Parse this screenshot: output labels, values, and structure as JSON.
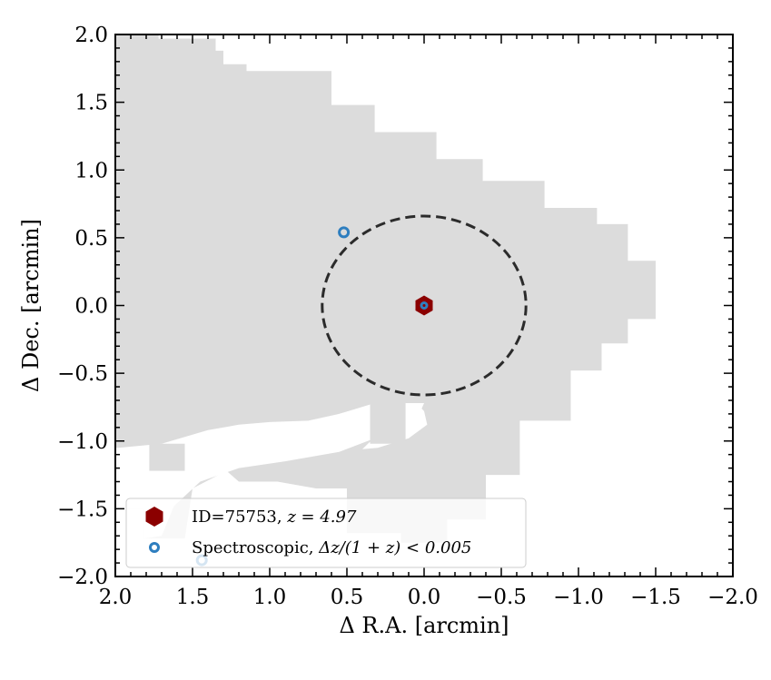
{
  "chart_data": {
    "type": "scatter",
    "title": "",
    "xlabel": "Δ R.A. [arcmin]",
    "ylabel": "Δ Dec. [arcmin]",
    "xlim": [
      2.0,
      -2.0
    ],
    "ylim": [
      -2.0,
      2.0
    ],
    "xticks": [
      2.0,
      1.5,
      1.0,
      0.5,
      0.0,
      -0.5,
      -1.0,
      -1.5,
      -2.0
    ],
    "xtick_labels": [
      "2.0",
      "1.5",
      "1.0",
      "0.5",
      "0.0",
      "−0.5",
      "−1.0",
      "−1.5",
      "−2.0"
    ],
    "yticks": [
      2.0,
      1.5,
      1.0,
      0.5,
      0.0,
      -0.5,
      -1.0,
      -1.5,
      -2.0
    ],
    "ytick_labels": [
      "2.0",
      "1.5",
      "1.0",
      "0.5",
      "0.0",
      "−0.5",
      "−1.0",
      "−1.5",
      "−2.0"
    ],
    "grid": false,
    "legend_position": "lower-left",
    "coverage_color": "#dcdcdc",
    "coverage_region": [
      [
        2.0,
        2.0
      ],
      [
        1.72,
        2.0
      ],
      [
        1.72,
        1.97
      ],
      [
        1.35,
        1.97
      ],
      [
        1.35,
        1.88
      ],
      [
        1.3,
        1.88
      ],
      [
        1.3,
        1.78
      ],
      [
        1.15,
        1.78
      ],
      [
        1.15,
        1.73
      ],
      [
        0.6,
        1.73
      ],
      [
        0.6,
        1.48
      ],
      [
        0.32,
        1.48
      ],
      [
        0.32,
        1.28
      ],
      [
        -0.08,
        1.28
      ],
      [
        -0.08,
        1.08
      ],
      [
        -0.38,
        1.08
      ],
      [
        -0.38,
        0.92
      ],
      [
        -0.78,
        0.92
      ],
      [
        -0.78,
        0.72
      ],
      [
        -1.12,
        0.72
      ],
      [
        -1.12,
        0.6
      ],
      [
        -1.32,
        0.6
      ],
      [
        -1.32,
        0.33
      ],
      [
        -1.5,
        0.33
      ],
      [
        -1.5,
        -0.1
      ],
      [
        -1.32,
        -0.1
      ],
      [
        -1.32,
        -0.28
      ],
      [
        -1.15,
        -0.28
      ],
      [
        -1.15,
        -0.48
      ],
      [
        -0.95,
        -0.48
      ],
      [
        -0.95,
        -0.85
      ],
      [
        -0.62,
        -0.85
      ],
      [
        -0.62,
        -1.25
      ],
      [
        -0.4,
        -1.25
      ],
      [
        -0.4,
        -1.58
      ],
      [
        -0.15,
        -1.58
      ],
      [
        -0.15,
        -1.75
      ],
      [
        0.15,
        -1.75
      ],
      [
        0.15,
        -1.68
      ],
      [
        0.5,
        -1.68
      ],
      [
        0.5,
        -1.35
      ],
      [
        0.7,
        -1.35
      ],
      [
        0.95,
        -1.3
      ],
      [
        1.2,
        -1.3
      ],
      [
        1.28,
        -1.22
      ],
      [
        1.5,
        -1.35
      ],
      [
        1.55,
        -1.72
      ],
      [
        1.82,
        -1.72
      ],
      [
        1.82,
        -1.5
      ],
      [
        1.98,
        -1.5
      ],
      [
        1.98,
        -1.05
      ],
      [
        2.0,
        -1.05
      ]
    ],
    "uncovered_regions": [
      [
        [
          1.98,
          -1.05
        ],
        [
          1.7,
          -1.02
        ],
        [
          1.4,
          -0.92
        ],
        [
          1.2,
          -0.88
        ],
        [
          1.0,
          -0.86
        ],
        [
          0.75,
          -0.85
        ],
        [
          0.55,
          -0.8
        ],
        [
          0.3,
          -0.72
        ],
        [
          0.0,
          -0.72
        ],
        [
          0.05,
          -0.85
        ],
        [
          0.25,
          -0.95
        ],
        [
          0.55,
          -1.08
        ],
        [
          0.9,
          -1.15
        ],
        [
          1.2,
          -1.2
        ],
        [
          1.45,
          -1.3
        ],
        [
          1.62,
          -1.48
        ],
        [
          1.7,
          -1.7
        ],
        [
          1.82,
          -1.72
        ],
        [
          1.82,
          -1.5
        ],
        [
          1.98,
          -1.5
        ]
      ],
      [
        [
          0.55,
          -0.8
        ],
        [
          0.32,
          -0.72
        ],
        [
          0.05,
          -0.72
        ],
        [
          0.0,
          -0.78
        ],
        [
          -0.02,
          -0.88
        ],
        [
          0.1,
          -0.98
        ],
        [
          0.3,
          -1.05
        ],
        [
          0.4,
          -1.06
        ],
        [
          0.3,
          -0.95
        ],
        [
          0.35,
          -0.85
        ]
      ]
    ],
    "coverage_patches": [
      {
        "x": [
          1.78,
          1.55
        ],
        "y": [
          -1.02,
          -1.22
        ]
      },
      {
        "x": [
          0.35,
          0.12
        ],
        "y": [
          -0.72,
          -1.02
        ]
      }
    ],
    "aperture_circle": {
      "center": [
        0.0,
        0.0
      ],
      "radius": 0.66,
      "style": "dashed",
      "color": "#2b2b2b"
    },
    "series": [
      {
        "name": "ID=75753, z=4.97",
        "marker": "hexagon",
        "color": "#8b0000",
        "points": [
          [
            0.0,
            0.0
          ]
        ]
      },
      {
        "name": "Spectroscopic, Δz/(1+z)<0.005",
        "marker": "open-circle",
        "color": "#2e7ebf",
        "points": [
          [
            0.0,
            0.0
          ],
          [
            0.52,
            0.54
          ],
          [
            1.44,
            -1.88
          ]
        ]
      }
    ],
    "legend": {
      "entries": [
        {
          "label_prefix": "ID=75753, ",
          "label_math": "z = 4.97"
        },
        {
          "label_prefix": "Spectroscopic, ",
          "label_math": "Δz/(1 + z) < 0.005"
        }
      ]
    }
  }
}
